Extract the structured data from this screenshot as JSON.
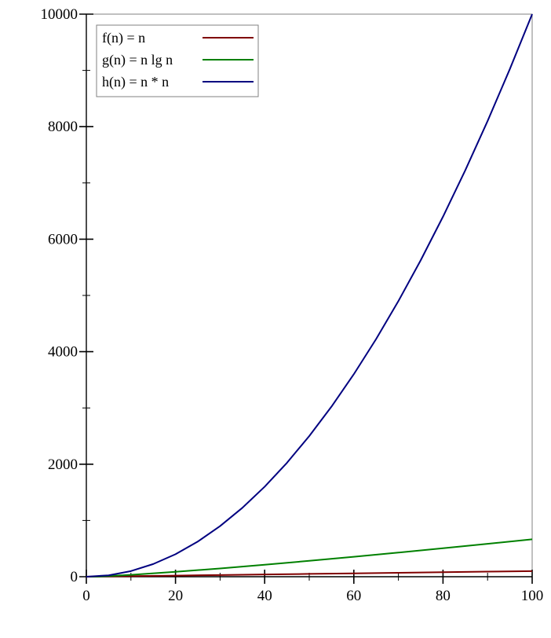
{
  "chart_data": {
    "type": "line",
    "title": "",
    "xlabel": "",
    "ylabel": "",
    "xlim": [
      0,
      100
    ],
    "ylim": [
      0,
      10000
    ],
    "x_ticks": [
      0,
      20,
      40,
      60,
      80,
      100
    ],
    "x_tick_labels": [
      "0",
      "20",
      "40",
      "60",
      "80",
      "100"
    ],
    "x_minor_ticks": [
      10,
      30,
      50,
      70,
      90
    ],
    "y_ticks": [
      0,
      2000,
      4000,
      6000,
      8000,
      10000
    ],
    "y_tick_labels": [
      "0",
      "2000",
      "4000",
      "6000",
      "8000",
      "10000"
    ],
    "y_minor_ticks": [
      1000,
      3000,
      5000,
      7000,
      9000
    ],
    "grid": false,
    "legend_position": "top-left",
    "series": [
      {
        "name": "f(n) = n",
        "color": "#800000",
        "x": [
          0,
          10,
          20,
          30,
          40,
          50,
          60,
          70,
          80,
          90,
          100
        ],
        "values": [
          0,
          10,
          20,
          30,
          40,
          50,
          60,
          70,
          80,
          90,
          100
        ]
      },
      {
        "name": "g(n) = n lg n",
        "color": "#008000",
        "x": [
          1,
          2,
          5,
          10,
          20,
          30,
          40,
          50,
          60,
          70,
          80,
          90,
          100
        ],
        "values": [
          0,
          2,
          11.6,
          33.2,
          86.4,
          147.2,
          212.9,
          282.2,
          354.4,
          429.1,
          505.8,
          584.3,
          664.4
        ]
      },
      {
        "name": "h(n) = n * n",
        "color": "#000080",
        "x": [
          0,
          5,
          10,
          15,
          20,
          25,
          30,
          35,
          40,
          45,
          50,
          55,
          60,
          65,
          70,
          75,
          80,
          85,
          90,
          95,
          100
        ],
        "values": [
          0,
          25,
          100,
          225,
          400,
          625,
          900,
          1225,
          1600,
          2025,
          2500,
          3025,
          3600,
          4225,
          4900,
          5625,
          6400,
          7225,
          8100,
          9025,
          10000
        ]
      }
    ]
  }
}
